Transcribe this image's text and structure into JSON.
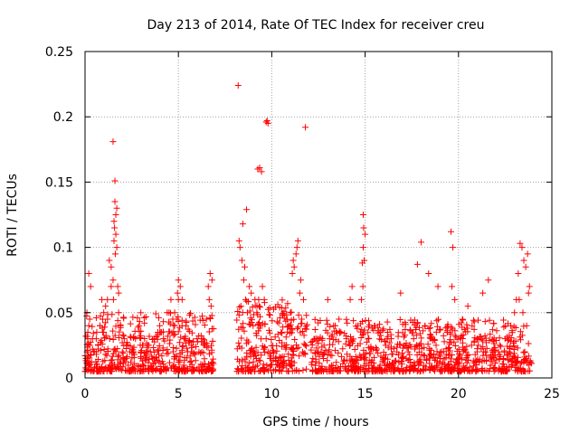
{
  "chart_data": {
    "type": "scatter",
    "title": "Day 213 of 2014, Rate Of TEC Index for receiver creu",
    "xlabel": "GPS time / hours",
    "ylabel": "ROTI / TECUs",
    "xlim": [
      0,
      25
    ],
    "ylim": [
      0,
      0.25
    ],
    "x_ticks": [
      0,
      5,
      10,
      15,
      20,
      25
    ],
    "y_ticks": [
      0,
      0.05,
      0.1,
      0.15,
      0.2,
      0.25
    ],
    "x_tick_labels": [
      "0",
      "5",
      "10",
      "15",
      "20",
      "25"
    ],
    "y_tick_labels": [
      "0",
      "0.05",
      "0.1",
      "0.15",
      "0.2",
      "0.25"
    ],
    "grid": true,
    "marker": "+",
    "color": "#ff0000",
    "series": [
      {
        "name": "ROTI",
        "x": [
          0.05,
          0.1,
          0.15,
          0.2,
          0.25,
          0.3,
          0.35,
          0.4,
          0.1,
          0.2,
          0.3,
          0.25,
          0.15,
          0.5,
          0.6,
          0.7,
          0.8,
          0.9,
          1.0,
          1.1,
          1.2,
          1.3,
          1.4,
          1.5,
          1.55,
          1.6,
          1.65,
          1.7,
          1.75,
          1.8,
          1.5,
          1.6,
          1.7,
          1.55,
          1.62,
          1.58,
          1.65,
          1.52,
          1.9,
          2.0,
          2.1,
          2.2,
          2.3,
          2.5,
          2.7,
          2.9,
          3.1,
          3.3,
          3.5,
          3.7,
          3.9,
          4.0,
          4.2,
          4.4,
          4.6,
          4.8,
          4.9,
          5.0,
          5.1,
          5.2,
          5.3,
          5.5,
          5.7,
          5.9,
          6.1,
          6.3,
          6.5,
          6.6,
          6.7,
          6.8,
          6.65,
          6.75,
          4.5,
          4.7,
          4.8,
          5.0,
          4.95,
          3.0,
          2.6,
          2.2,
          1.8,
          1.2,
          0.8,
          0.4,
          0.6,
          1.0,
          1.4,
          2.4,
          3.4,
          4.1,
          5.4,
          6.0,
          6.4,
          8.2,
          8.3,
          8.4,
          8.5,
          8.6,
          8.7,
          8.8,
          8.9,
          9.0,
          9.1,
          9.2,
          9.3,
          9.4,
          9.5,
          9.6,
          9.7,
          9.8,
          9.9,
          10.0,
          8.25,
          8.55,
          8.45,
          8.65,
          9.25,
          9.35,
          9.45,
          9.7,
          9.75,
          9.8,
          11.0,
          11.1,
          11.2,
          11.3,
          11.4,
          11.5,
          11.6,
          10.5,
          10.7,
          10.9,
          11.15,
          11.35,
          11.55,
          11.8,
          11.7,
          10.2,
          10.3,
          10.1,
          8.35,
          12.2,
          12.5,
          12.8,
          13.1,
          13.4,
          13.7,
          14.0,
          14.3,
          14.6,
          14.8,
          14.9,
          15.0,
          14.95,
          14.85,
          14.9,
          14.92,
          14.88,
          15.2,
          15.5,
          15.8,
          16.1,
          16.4,
          16.7,
          17.0,
          17.3,
          17.6,
          17.9,
          18.2,
          18.5,
          18.8,
          19.1,
          19.4,
          19.6,
          19.7,
          19.8,
          20.1,
          20.4,
          20.7,
          21.0,
          21.3,
          21.6,
          21.9,
          22.2,
          22.5,
          22.8,
          23.0,
          23.1,
          23.2,
          23.3,
          23.4,
          23.5,
          23.6,
          23.7,
          23.8,
          23.25,
          23.45,
          23.65,
          23.75,
          18.0,
          17.8,
          18.4,
          19.65,
          20.5,
          21.0,
          14.2,
          16.2,
          17.2,
          22.9,
          23.55,
          12.4,
          13.0,
          13.6,
          16.9,
          18.9
        ],
        "y": [
          0.015,
          0.02,
          0.03,
          0.04,
          0.025,
          0.018,
          0.012,
          0.022,
          0.05,
          0.08,
          0.07,
          0.045,
          0.035,
          0.02,
          0.03,
          0.025,
          0.04,
          0.06,
          0.035,
          0.055,
          0.045,
          0.09,
          0.085,
          0.075,
          0.12,
          0.135,
          0.11,
          0.1,
          0.07,
          0.065,
          0.181,
          0.151,
          0.13,
          0.105,
          0.095,
          0.115,
          0.125,
          0.06,
          0.04,
          0.02,
          0.03,
          0.015,
          0.025,
          0.02,
          0.03,
          0.04,
          0.025,
          0.018,
          0.02,
          0.03,
          0.035,
          0.04,
          0.03,
          0.05,
          0.06,
          0.05,
          0.045,
          0.075,
          0.07,
          0.06,
          0.03,
          0.02,
          0.025,
          0.018,
          0.02,
          0.03,
          0.045,
          0.07,
          0.08,
          0.075,
          0.06,
          0.055,
          0.05,
          0.045,
          0.04,
          0.06,
          0.065,
          0.015,
          0.02,
          0.025,
          0.05,
          0.06,
          0.04,
          0.03,
          0.02,
          0.05,
          0.07,
          0.02,
          0.025,
          0.035,
          0.04,
          0.03,
          0.025,
          0.224,
          0.1,
          0.09,
          0.075,
          0.06,
          0.05,
          0.07,
          0.065,
          0.04,
          0.06,
          0.05,
          0.06,
          0.04,
          0.07,
          0.06,
          0.03,
          0.02,
          0.015,
          0.01,
          0.105,
          0.085,
          0.118,
          0.129,
          0.16,
          0.161,
          0.158,
          0.196,
          0.197,
          0.195,
          0.05,
          0.08,
          0.085,
          0.095,
          0.105,
          0.065,
          0.045,
          0.035,
          0.025,
          0.04,
          0.09,
          0.1,
          0.075,
          0.192,
          0.06,
          0.015,
          0.01,
          0.02,
          0.055,
          0.015,
          0.02,
          0.025,
          0.03,
          0.04,
          0.035,
          0.03,
          0.07,
          0.04,
          0.06,
          0.125,
          0.11,
          0.09,
          0.088,
          0.1,
          0.115,
          0.07,
          0.03,
          0.04,
          0.035,
          0.025,
          0.03,
          0.02,
          0.015,
          0.02,
          0.03,
          0.025,
          0.04,
          0.03,
          0.025,
          0.02,
          0.035,
          0.112,
          0.1,
          0.06,
          0.03,
          0.02,
          0.025,
          0.03,
          0.065,
          0.075,
          0.02,
          0.025,
          0.03,
          0.04,
          0.05,
          0.06,
          0.08,
          0.103,
          0.1,
          0.09,
          0.085,
          0.095,
          0.07,
          0.06,
          0.05,
          0.04,
          0.065,
          0.104,
          0.087,
          0.08,
          0.07,
          0.055,
          0.02,
          0.06,
          0.035,
          0.015,
          0.01,
          0.02,
          0.03,
          0.06,
          0.045,
          0.065,
          0.07
        ],
        "density_clusters": [
          {
            "x_from": 0.0,
            "x_to": 6.9,
            "y_from": 0.005,
            "y_to": 0.05
          },
          {
            "x_from": 8.1,
            "x_to": 11.9,
            "y_from": 0.005,
            "y_to": 0.06
          },
          {
            "x_from": 12.1,
            "x_to": 23.9,
            "y_from": 0.005,
            "y_to": 0.045
          }
        ]
      }
    ]
  }
}
